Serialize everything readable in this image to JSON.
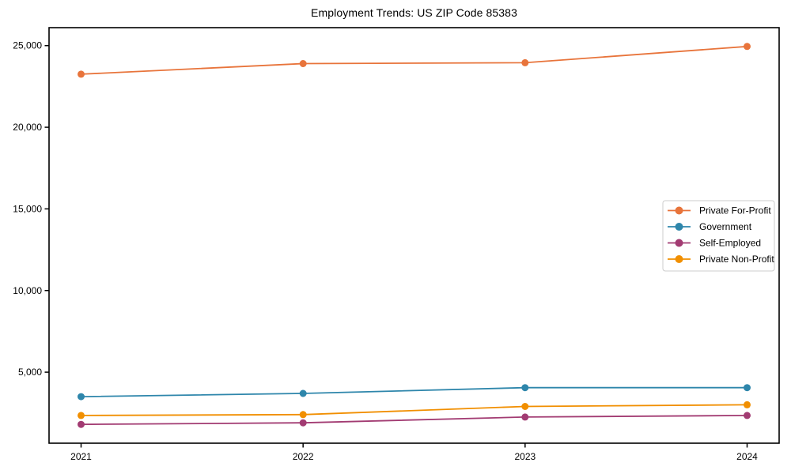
{
  "figure": {
    "background": "#ffffff",
    "axis_color": "#000000",
    "tick_label_color": "#000000",
    "legend_border_color": "#cccccc"
  },
  "chart_data": {
    "type": "line",
    "title": "Employment Trends: US ZIP Code 85383",
    "xlabel": "",
    "ylabel": "",
    "x": [
      "2021",
      "2022",
      "2023",
      "2024"
    ],
    "series": [
      {
        "name": "Private For-Profit",
        "color": "#E8743B",
        "values": [
          23250,
          23900,
          23950,
          24950
        ]
      },
      {
        "name": "Government",
        "color": "#2E86AB",
        "values": [
          3500,
          3700,
          4050,
          4050
        ]
      },
      {
        "name": "Self-Employed",
        "color": "#A23B72",
        "values": [
          1800,
          1900,
          2250,
          2350
        ]
      },
      {
        "name": "Private Non-Profit",
        "color": "#F18F01",
        "values": [
          2350,
          2400,
          2900,
          3000
        ]
      }
    ],
    "yticks": [
      5000,
      10000,
      15000,
      20000,
      25000
    ],
    "ytick_labels": [
      "5,000",
      "10,000",
      "15,000",
      "20,000",
      "25,000"
    ],
    "ylim": [
      650,
      26100
    ],
    "grid": false,
    "legend_position": "center right",
    "marker": "circle",
    "legend_labels": [
      "Private For-Profit",
      "Government",
      "Self-Employed",
      "Private Non-Profit"
    ]
  }
}
